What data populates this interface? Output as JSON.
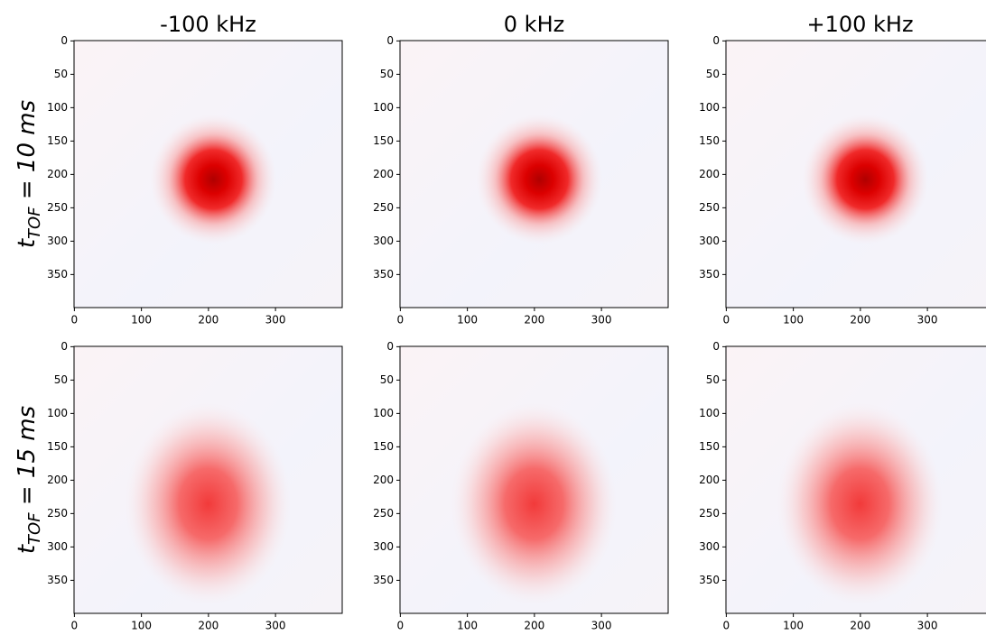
{
  "chart_data": [
    {
      "type": "image",
      "title": "-100 kHz",
      "ylabel": [
        "t",
        "TOF",
        " = 10 ms"
      ],
      "xlim": [
        -0.5,
        399.5
      ],
      "ylim": [
        399.5,
        -0.5
      ],
      "xticks": [
        0,
        100,
        200,
        300
      ],
      "yticks": [
        0,
        50,
        100,
        150,
        200,
        250,
        300,
        350
      ]
    },
    {
      "type": "image",
      "title": "0 kHz",
      "xlim": [
        -0.5,
        399.5
      ],
      "ylim": [
        399.5,
        -0.5
      ],
      "xticks": [
        0,
        100,
        200,
        300
      ],
      "yticks": [
        0,
        50,
        100,
        150,
        200,
        250,
        300,
        350
      ]
    },
    {
      "type": "image",
      "title": "+100 kHz",
      "xlim": [
        -0.5,
        399.5
      ],
      "ylim": [
        399.5,
        -0.5
      ],
      "xticks": [
        0,
        100,
        200,
        300
      ],
      "yticks": [
        0,
        50,
        100,
        150,
        200,
        250,
        300,
        350
      ]
    },
    {
      "type": "image",
      "ylabel": [
        "t",
        "TOF",
        " = 15 ms"
      ],
      "xlim": [
        -0.5,
        399.5
      ],
      "ylim": [
        399.5,
        -0.5
      ],
      "xticks": [
        0,
        100,
        200,
        300
      ],
      "yticks": [
        0,
        50,
        100,
        150,
        200,
        250,
        300,
        350
      ]
    },
    {
      "type": "image",
      "xlim": [
        -0.5,
        399.5
      ],
      "ylim": [
        399.5,
        -0.5
      ],
      "xticks": [
        0,
        100,
        200,
        300
      ],
      "yticks": [
        0,
        50,
        100,
        150,
        200,
        250,
        300,
        350
      ]
    },
    {
      "type": "image",
      "xlim": [
        -0.5,
        399.5
      ],
      "ylim": [
        399.5,
        -0.5
      ],
      "xticks": [
        0,
        100,
        200,
        300
      ],
      "yticks": [
        0,
        50,
        100,
        150,
        200,
        250,
        300,
        350
      ]
    }
  ]
}
